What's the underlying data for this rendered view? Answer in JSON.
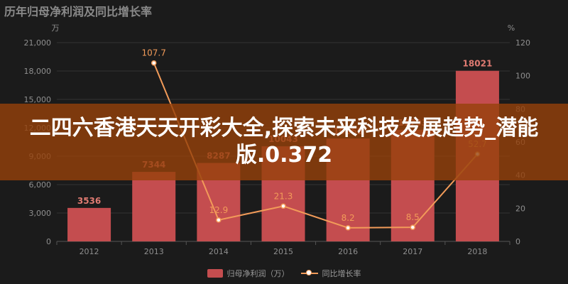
{
  "title": "历年归母净利润及同比增长率",
  "banner": "二四六香港天天开彩大全,探索未来科技发展趋势_潜能版.0.372",
  "chart_data": {
    "type": "bar+line",
    "categories": [
      "2012",
      "2013",
      "2014",
      "2015",
      "2016",
      "2017",
      "2018"
    ],
    "left_axis_unit": "万",
    "right_axis_unit": "%",
    "left_ylim": [
      0,
      21000
    ],
    "right_ylim": [
      0,
      120
    ],
    "left_ticks": [
      "0",
      "3,000",
      "6,000",
      "9,000",
      "12,000",
      "15,000",
      "18,000",
      "21,000"
    ],
    "right_ticks": [
      "0",
      "20",
      "40",
      "60",
      "80",
      "100",
      "120"
    ],
    "series": [
      {
        "name": "归母净利润（万）",
        "type": "bar",
        "axis": "left",
        "color": "#c44d4f",
        "values": [
          3536,
          7344,
          8287,
          10043,
          10868,
          11793,
          18021
        ],
        "labels": [
          "3536",
          "7344",
          "8287",
          "10043",
          "10868",
          "11793",
          "18021"
        ]
      },
      {
        "name": "同比增长率",
        "type": "line",
        "axis": "right",
        "color": "#f29b59",
        "values": [
          null,
          107.7,
          12.9,
          21.3,
          8.2,
          8.5,
          52.7
        ],
        "labels": [
          "",
          "107.7",
          "12.9",
          "21.3",
          "8.2",
          "8.5",
          "52.7"
        ]
      }
    ],
    "grid": true,
    "legend_position": "bottom"
  }
}
